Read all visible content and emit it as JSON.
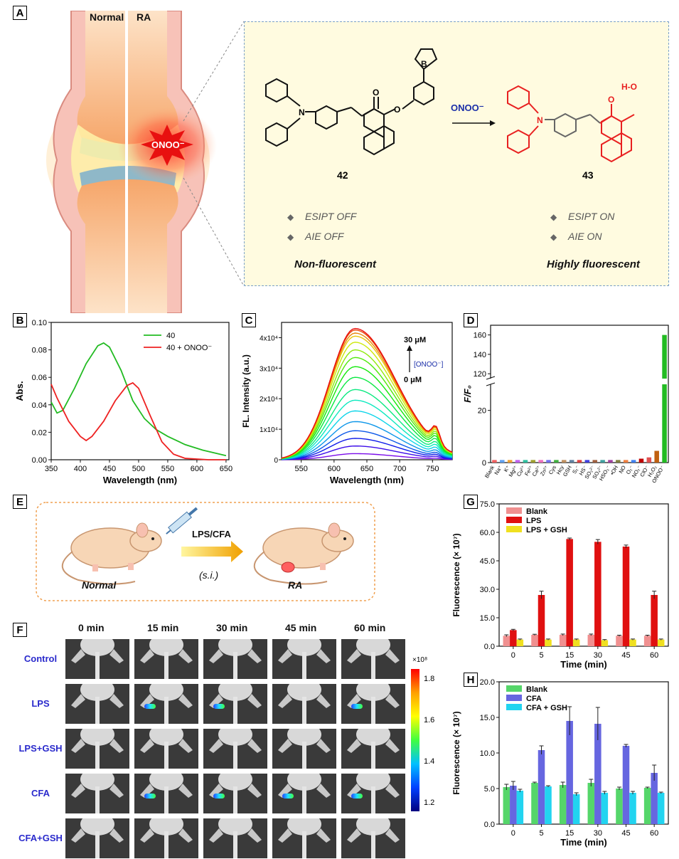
{
  "panels": {
    "A": "A",
    "B": "B",
    "C": "C",
    "D": "D",
    "E": "E",
    "F": "F",
    "G": "G",
    "H": "H"
  },
  "panelA": {
    "normal_label": "Normal",
    "ra_label": "RA",
    "onoo_label": "ONOO⁻",
    "compound_left": "42",
    "compound_right": "43",
    "reagent": "ONOO⁻",
    "left_bullets": [
      "ESIPT OFF",
      "AIE OFF"
    ],
    "right_bullets": [
      "ESIPT ON",
      "AIE ON"
    ],
    "left_state": "Non-fluorescent",
    "right_state": "Highly fluorescent"
  },
  "panelE": {
    "injection": "LPS/CFA",
    "route": "(s.i.)",
    "left": "Normal",
    "right": "RA"
  },
  "panelF": {
    "times": [
      "0 min",
      "15 min",
      "30 min",
      "45 min",
      "60 min"
    ],
    "groups": [
      "Control",
      "LPS",
      "LPS+GSH",
      "CFA",
      "CFA+GSH"
    ],
    "colorbar_unit": "×10⁸",
    "colorbar_ticks": [
      "1.8",
      "1.6",
      "1.4",
      "1.2"
    ],
    "signal": [
      [
        0,
        0,
        0,
        0,
        0
      ],
      [
        0,
        1,
        1,
        0,
        1
      ],
      [
        0,
        0,
        0,
        0,
        0
      ],
      [
        0,
        1,
        1,
        1,
        1
      ],
      [
        0,
        0,
        0,
        0,
        0
      ]
    ]
  },
  "chart_data": [
    {
      "id": "B",
      "type": "line",
      "xlabel": "Wavelength (nm)",
      "ylabel": "Abs.",
      "xlim": [
        350,
        655
      ],
      "ylim": [
        0,
        0.1
      ],
      "xticks": [
        "350",
        "400",
        "450",
        "500",
        "550",
        "600",
        "650"
      ],
      "yticks": [
        "0.00",
        "0.02",
        "0.04",
        "0.06",
        "0.08",
        "0.10"
      ],
      "series": [
        {
          "name": "40",
          "color": "#22bb22",
          "x": [
            350,
            360,
            370,
            390,
            410,
            430,
            440,
            450,
            470,
            490,
            510,
            530,
            550,
            580,
            610,
            650
          ],
          "y": [
            0.042,
            0.034,
            0.036,
            0.052,
            0.07,
            0.083,
            0.085,
            0.082,
            0.065,
            0.043,
            0.03,
            0.022,
            0.017,
            0.011,
            0.007,
            0.003
          ]
        },
        {
          "name": "40 + ONOO⁻",
          "color": "#ee2222",
          "x": [
            350,
            360,
            380,
            400,
            410,
            420,
            440,
            460,
            480,
            490,
            500,
            520,
            540,
            560,
            580,
            620,
            650
          ],
          "y": [
            0.055,
            0.045,
            0.028,
            0.017,
            0.014,
            0.017,
            0.028,
            0.043,
            0.054,
            0.056,
            0.052,
            0.032,
            0.013,
            0.004,
            0.001,
            0.0,
            0.0
          ]
        }
      ]
    },
    {
      "id": "C",
      "type": "line",
      "xlabel": "Wavelength (nm)",
      "ylabel": "FL. Intensity (a.u.)",
      "xlim": [
        520,
        780
      ],
      "ylim": [
        0,
        45000
      ],
      "xticks": [
        "550",
        "600",
        "650",
        "700",
        "750"
      ],
      "yticks": [
        "0",
        "1x10⁴",
        "2x10⁴",
        "3x10⁴",
        "4x10⁴"
      ],
      "peak_wavelength": 632,
      "peaks": [
        2000,
        4500,
        7000,
        9500,
        12500,
        16000,
        19500,
        23000,
        27000,
        30500,
        33500,
        36000,
        38500,
        40500,
        41500,
        42500,
        43000
      ],
      "annotation_top": "30 μM",
      "annotation_bottom": "0 μM",
      "annotation_arrow": "[ONOO⁻]"
    },
    {
      "id": "D",
      "type": "bar",
      "ylabel": "F/F₀",
      "categories": [
        "Blank",
        "Na⁺",
        "K⁺",
        "Mg²⁺",
        "Cu²⁺",
        "Fe²⁺",
        "Ca²⁺",
        "Zn²⁺",
        "Cys",
        "Hcy",
        "GSH",
        "S₂⁻",
        "HS⁻",
        "SO₃²⁻",
        "SO₄²⁻",
        "HSO₃⁻",
        "•OH",
        "NO",
        "O₂⁻",
        "NO₂⁻",
        "ClO⁻",
        "H₂O₂",
        "ONOO⁻"
      ],
      "values": [
        1,
        1,
        1,
        1,
        1,
        1,
        1,
        1,
        1,
        1,
        1,
        1,
        1,
        1,
        1,
        1,
        1,
        1,
        1,
        1.5,
        2,
        4.5,
        160
      ],
      "yticks": [
        "0",
        "20",
        "120",
        "140",
        "160"
      ],
      "broken_axis": [
        30,
        115
      ]
    },
    {
      "id": "G",
      "type": "bar",
      "xlabel": "Time (min)",
      "ylabel": "Fluorescence (× 10⁷)",
      "categories": [
        "0",
        "5",
        "15",
        "30",
        "45",
        "60"
      ],
      "ylim": [
        0,
        75
      ],
      "yticks": [
        "0.0",
        "15.0",
        "30.0",
        "45.0",
        "60.0",
        "75.0"
      ],
      "series": [
        {
          "name": "Blank",
          "color": "#f09090",
          "values": [
            5.5,
            6.0,
            6.0,
            6.0,
            5.5,
            5.5
          ],
          "err": [
            0.5,
            0.3,
            0.4,
            0.4,
            0.3,
            0.3
          ]
        },
        {
          "name": "LPS",
          "color": "#e01010",
          "values": [
            8.5,
            27,
            56.5,
            55,
            52.5,
            27
          ],
          "err": [
            0.4,
            2,
            0.5,
            1.2,
            0.8,
            2
          ]
        },
        {
          "name": "LPS + GSH",
          "color": "#f0e020",
          "values": [
            3.5,
            3.5,
            3.5,
            3.2,
            3.5,
            3.5
          ],
          "err": [
            0.3,
            0.3,
            0.3,
            0.3,
            0.3,
            0.3
          ]
        }
      ]
    },
    {
      "id": "H",
      "type": "bar",
      "xlabel": "Time (min)",
      "ylabel": "Fluorescence (× 10⁷)",
      "categories": [
        "0",
        "5",
        "15",
        "30",
        "45",
        "60"
      ],
      "ylim": [
        0,
        20
      ],
      "yticks": [
        "0.0",
        "5.0",
        "10.0",
        "15.0",
        "20.0"
      ],
      "series": [
        {
          "name": "Blank",
          "color": "#55d66a",
          "values": [
            5.2,
            5.8,
            5.5,
            5.8,
            5.0,
            5.1
          ],
          "err": [
            0.4,
            0.1,
            0.4,
            0.5,
            0.2,
            0.1
          ]
        },
        {
          "name": "CFA",
          "color": "#6666e0",
          "values": [
            5.4,
            10.4,
            14.5,
            14.1,
            11.0,
            7.2
          ],
          "err": [
            0.6,
            0.6,
            2.0,
            2.3,
            0.2,
            1.1
          ]
        },
        {
          "name": "CFA + GSH",
          "color": "#22d4f0",
          "values": [
            4.7,
            5.3,
            4.2,
            4.4,
            4.4,
            4.4
          ],
          "err": [
            0.2,
            0.1,
            0.2,
            0.2,
            0.2,
            0.1
          ]
        }
      ]
    }
  ]
}
